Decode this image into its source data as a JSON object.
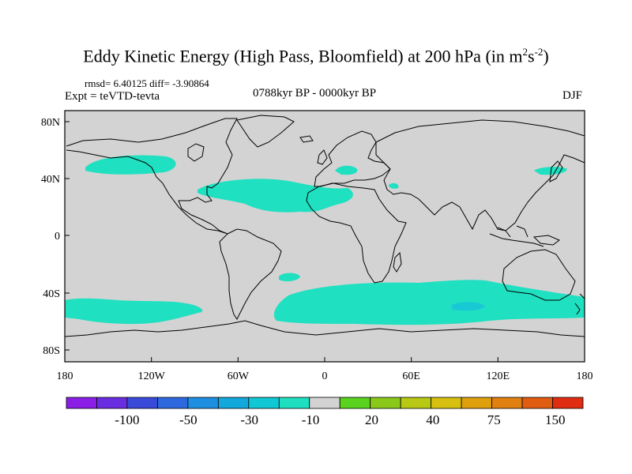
{
  "title": "Eddy Kinetic Energy (High Pass, Bloomfield) at 200 hPa (in m",
  "title_unit_sup1": "2",
  "title_unit_mid": "s",
  "title_unit_sup2": "-2",
  "title_close": ")",
  "stats": "rmsd= 6.40125 diff= -3.90864",
  "expt_label": "Expt = teVTD-tevta",
  "period": "0788kyr BP - 0000kyr BP",
  "season": "DJF",
  "map": {
    "background_color": "#d3d3d3",
    "x_ticks": [
      "180",
      "120W",
      "60W",
      "0",
      "60E",
      "120E",
      "180"
    ],
    "y_ticks": [
      "80N",
      "40N",
      "0",
      "40S",
      "80S"
    ],
    "fill_regions": [
      {
        "name": "north-pacific",
        "color": "#1fe0c0",
        "level": "-10"
      },
      {
        "name": "north-atlantic-africa",
        "color": "#1fe0c0",
        "level": "-10"
      },
      {
        "name": "europe",
        "color": "#1fe0c0",
        "level": "-10"
      },
      {
        "name": "northwest-pacific",
        "color": "#1fe0c0",
        "level": "-10"
      },
      {
        "name": "south-pacific-band",
        "color": "#1fe0c0",
        "level": "-10"
      },
      {
        "name": "southern-ocean-band",
        "color": "#1fe0c0",
        "level": "-10"
      },
      {
        "name": "south-atlantic-blob",
        "color": "#1fe0c0",
        "level": "-10"
      },
      {
        "name": "indian-ocean-core",
        "color": "#18c8d4",
        "level": "-30"
      }
    ]
  },
  "colorbar": {
    "labels": [
      "-100",
      "-50",
      "-30",
      "-10",
      "20",
      "40",
      "75",
      "150"
    ],
    "colors": [
      "#8a1ee6",
      "#6a2ce0",
      "#3a4ad8",
      "#2e68de",
      "#1e8ee0",
      "#12a8dc",
      "#10c8d4",
      "#1ee0c0",
      "#d3d3d3",
      "#5ad21e",
      "#8ac81a",
      "#b8c814",
      "#d8c010",
      "#e0a00e",
      "#e08010",
      "#e05c10",
      "#e02c10"
    ]
  }
}
